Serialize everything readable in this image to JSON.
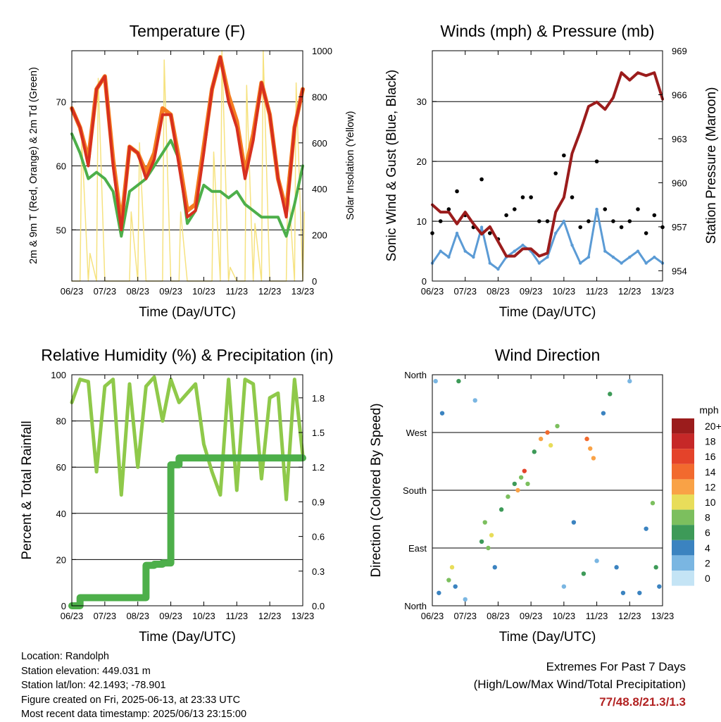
{
  "x_ticks": [
    "06/23",
    "07/23",
    "08/23",
    "09/23",
    "10/23",
    "11/23",
    "12/23",
    "13/23"
  ],
  "time_axis_label": "Time (Day/UTC)",
  "colors": {
    "temp2m": "#d7301f",
    "temp9m": "#f47c20",
    "dewpoint": "#4daf4a",
    "solar": "#f6e27f",
    "wind": "#5b9bd5",
    "gust": "#000000",
    "pressure": "#9b1c1c",
    "rh": "#8fc94a",
    "rain": "#4daf4a"
  },
  "footer": {
    "location": "Location: Randolph",
    "elevation": "Station elevation: 449.031 m",
    "latlon": "Station lat/lon: 42.1493; -78.901",
    "created": "Figure created on Fri, 2025-06-13, at 23:33 UTC",
    "recent": "Most recent data timestamp: 2025/06/13 23:15:00"
  },
  "extremes": {
    "title": "Extremes For Past 7 Days",
    "subtitle": "(High/Low/Max Wind/Total Precipitation)",
    "values": "77/48.8/21.3/1.3"
  },
  "chart_data": [
    {
      "type": "line",
      "title": "Temperature (F)",
      "xlabel": "Time (Day/UTC)",
      "ylabel": "2m & 9m T (Red, Orange) & 2m Td (Green)",
      "ylabel_right": "Solar Insolation (Yellow)",
      "ylim": [
        42,
        78
      ],
      "y2lim": [
        0,
        1000
      ],
      "yticks": [
        50,
        60,
        70
      ],
      "y2ticks": [
        0,
        200,
        400,
        600,
        800,
        1000
      ],
      "grid": true,
      "x": [
        6.0,
        6.25,
        6.5,
        6.75,
        7.0,
        7.25,
        7.5,
        7.75,
        8.0,
        8.25,
        8.5,
        8.75,
        9.0,
        9.25,
        9.5,
        9.75,
        10.0,
        10.25,
        10.5,
        10.75,
        11.0,
        11.25,
        11.5,
        11.75,
        12.0,
        12.25,
        12.5,
        12.75,
        13.0
      ],
      "series": [
        {
          "name": "2m T",
          "axis": "left",
          "values": [
            69,
            66,
            60,
            72,
            74,
            60,
            50,
            63,
            62,
            58,
            61,
            68,
            68,
            60,
            52,
            53,
            62,
            72,
            77,
            70,
            66,
            58,
            64,
            73,
            68,
            58,
            52,
            66,
            72
          ]
        },
        {
          "name": "9m T",
          "axis": "left",
          "values": [
            69,
            66,
            61,
            72,
            74,
            61,
            51,
            63,
            62,
            59,
            62,
            69,
            68,
            61,
            53,
            54,
            63,
            72,
            77,
            71,
            67,
            59,
            65,
            73,
            68,
            58,
            53,
            66,
            72
          ]
        },
        {
          "name": "2m Td",
          "axis": "left",
          "values": [
            65,
            62,
            58,
            59,
            58,
            56,
            49,
            56,
            57,
            58,
            60,
            62,
            64,
            61,
            51,
            53,
            57,
            56,
            56,
            55,
            56,
            54,
            53,
            52,
            52,
            52,
            49,
            54,
            60
          ]
        },
        {
          "name": "Solar Insolation",
          "axis": "right",
          "values": [
            0,
            620,
            120,
            880,
            0,
            0,
            0,
            300,
            600,
            0,
            0,
            960,
            0,
            300,
            0,
            0,
            0,
            560,
            1000,
            60,
            0,
            850,
            250,
            1000,
            0,
            0,
            450,
            860,
            300
          ]
        }
      ]
    },
    {
      "type": "line",
      "title": "Winds (mph) & Pressure (mb)",
      "xlabel": "Time (Day/UTC)",
      "ylabel": "Sonic Wind & Gust (Blue, Black)",
      "ylabel_right": "Station Pressure (Maroon)",
      "ylim": [
        0,
        38.5
      ],
      "y2lim": [
        953.3,
        969
      ],
      "yticks": [
        0,
        10,
        20,
        30
      ],
      "y2ticks": [
        954,
        957,
        960,
        963,
        966,
        969
      ],
      "grid": true,
      "x": [
        6.0,
        6.25,
        6.5,
        6.75,
        7.0,
        7.25,
        7.5,
        7.75,
        8.0,
        8.25,
        8.5,
        8.75,
        9.0,
        9.25,
        9.5,
        9.75,
        10.0,
        10.25,
        10.5,
        10.75,
        11.0,
        11.25,
        11.5,
        11.75,
        12.0,
        12.25,
        12.5,
        12.75,
        13.0
      ],
      "series": [
        {
          "name": "Sonic Wind",
          "axis": "left",
          "values": [
            3,
            5,
            4,
            8,
            5,
            4,
            9,
            3,
            2,
            4,
            5,
            6,
            5,
            3,
            4,
            8,
            10,
            6,
            3,
            4,
            12,
            5,
            4,
            3,
            4,
            5,
            3,
            4,
            3
          ]
        },
        {
          "name": "Gust",
          "axis": "left",
          "values": [
            8,
            10,
            12,
            15,
            11,
            9,
            17,
            8,
            7,
            11,
            12,
            14,
            14,
            10,
            10,
            18,
            21,
            14,
            9,
            10,
            20,
            12,
            10,
            9,
            10,
            12,
            8,
            11,
            9
          ]
        },
        {
          "name": "Station Pressure",
          "axis": "right",
          "values": [
            958.5,
            958.0,
            958.0,
            957.2,
            958.0,
            957.2,
            956.5,
            957.0,
            956.0,
            955.0,
            955.0,
            955.5,
            955.5,
            955.0,
            955.2,
            958.0,
            959.0,
            962.0,
            963.5,
            965.2,
            965.5,
            965.0,
            965.8,
            967.5,
            967.0,
            967.5,
            967.3,
            967.5,
            965.7
          ]
        }
      ]
    },
    {
      "type": "line",
      "title": "Relative Humidity (%) & Precipitation (in)",
      "xlabel": "Time (Day/UTC)",
      "ylabel": "Percent & Total Rainfall",
      "ylim": [
        0,
        100
      ],
      "y2lim": [
        0,
        2.0
      ],
      "yticks": [
        0,
        20,
        40,
        60,
        80,
        100
      ],
      "y2ticks": [
        0.0,
        0.3,
        0.6,
        0.9,
        1.2,
        1.5,
        1.8
      ],
      "grid": true,
      "x": [
        6.0,
        6.25,
        6.5,
        6.75,
        7.0,
        7.25,
        7.5,
        7.75,
        8.0,
        8.25,
        8.5,
        8.75,
        9.0,
        9.25,
        9.5,
        9.75,
        10.0,
        10.25,
        10.5,
        10.75,
        11.0,
        11.25,
        11.5,
        11.75,
        12.0,
        12.25,
        12.5,
        12.75,
        13.0
      ],
      "series": [
        {
          "name": "Relative Humidity",
          "axis": "left",
          "values": [
            88,
            98,
            97,
            58,
            95,
            98,
            48,
            96,
            60,
            95,
            99,
            80,
            98,
            88,
            92,
            96,
            70,
            58,
            48,
            98,
            50,
            98,
            96,
            55,
            90,
            92,
            46,
            98,
            65
          ]
        },
        {
          "name": "Total Rainfall",
          "axis": "right",
          "values": [
            0.0,
            0.07,
            0.07,
            0.07,
            0.07,
            0.07,
            0.07,
            0.07,
            0.07,
            0.35,
            0.36,
            0.37,
            1.22,
            1.28,
            1.28,
            1.28,
            1.28,
            1.28,
            1.28,
            1.28,
            1.28,
            1.28,
            1.28,
            1.28,
            1.28,
            1.28,
            1.28,
            1.28,
            1.28
          ]
        }
      ]
    },
    {
      "type": "scatter",
      "title": "Wind Direction",
      "xlabel": "Time (Day/UTC)",
      "ylabel": "Direction (Colored By Speed)",
      "ylim": [
        0,
        360
      ],
      "ytick_labels": [
        "North",
        "East",
        "South",
        "West",
        "North"
      ],
      "grid": true,
      "colorbar_title": "mph",
      "colorbar_labels": [
        "20+",
        "18",
        "16",
        "14",
        "12",
        "10",
        "8",
        "6",
        "4",
        "2",
        "0"
      ],
      "colorbar_colors": [
        "#9b1c1c",
        "#c62828",
        "#e4432a",
        "#f26a2e",
        "#f9a246",
        "#e8dd5a",
        "#7cbf5e",
        "#3d9a58",
        "#3b83c0",
        "#7ab6e2",
        "#c4e4f5"
      ],
      "points": [
        {
          "x": 6.1,
          "dir": 350,
          "mph": 3
        },
        {
          "x": 6.2,
          "dir": 20,
          "mph": 4
        },
        {
          "x": 6.3,
          "dir": 300,
          "mph": 4
        },
        {
          "x": 6.5,
          "dir": 40,
          "mph": 8
        },
        {
          "x": 6.6,
          "dir": 60,
          "mph": 11
        },
        {
          "x": 6.7,
          "dir": 30,
          "mph": 5
        },
        {
          "x": 6.8,
          "dir": 350,
          "mph": 6
        },
        {
          "x": 7.0,
          "dir": 10,
          "mph": 2
        },
        {
          "x": 7.3,
          "dir": 320,
          "mph": 3
        },
        {
          "x": 7.5,
          "dir": 100,
          "mph": 7
        },
        {
          "x": 7.6,
          "dir": 130,
          "mph": 9
        },
        {
          "x": 7.7,
          "dir": 90,
          "mph": 8
        },
        {
          "x": 7.8,
          "dir": 110,
          "mph": 11
        },
        {
          "x": 7.9,
          "dir": 60,
          "mph": 4
        },
        {
          "x": 8.1,
          "dir": 150,
          "mph": 6
        },
        {
          "x": 8.3,
          "dir": 170,
          "mph": 9
        },
        {
          "x": 8.5,
          "dir": 190,
          "mph": 7
        },
        {
          "x": 8.6,
          "dir": 180,
          "mph": 12
        },
        {
          "x": 8.7,
          "dir": 200,
          "mph": 8
        },
        {
          "x": 8.8,
          "dir": 210,
          "mph": 16
        },
        {
          "x": 8.9,
          "dir": 190,
          "mph": 9
        },
        {
          "x": 9.1,
          "dir": 240,
          "mph": 6
        },
        {
          "x": 9.3,
          "dir": 260,
          "mph": 12
        },
        {
          "x": 9.5,
          "dir": 270,
          "mph": 14
        },
        {
          "x": 9.6,
          "dir": 250,
          "mph": 11
        },
        {
          "x": 9.8,
          "dir": 280,
          "mph": 9
        },
        {
          "x": 10.0,
          "dir": 30,
          "mph": 3
        },
        {
          "x": 10.3,
          "dir": 130,
          "mph": 4
        },
        {
          "x": 10.6,
          "dir": 50,
          "mph": 6
        },
        {
          "x": 10.7,
          "dir": 260,
          "mph": 14
        },
        {
          "x": 10.8,
          "dir": 245,
          "mph": 13
        },
        {
          "x": 10.9,
          "dir": 230,
          "mph": 12
        },
        {
          "x": 11.0,
          "dir": 70,
          "mph": 3
        },
        {
          "x": 11.2,
          "dir": 300,
          "mph": 5
        },
        {
          "x": 11.4,
          "dir": 330,
          "mph": 7
        },
        {
          "x": 11.6,
          "dir": 60,
          "mph": 4
        },
        {
          "x": 11.8,
          "dir": 20,
          "mph": 5
        },
        {
          "x": 12.0,
          "dir": 350,
          "mph": 3
        },
        {
          "x": 12.3,
          "dir": 20,
          "mph": 4
        },
        {
          "x": 12.5,
          "dir": 120,
          "mph": 5
        },
        {
          "x": 12.7,
          "dir": 160,
          "mph": 9
        },
        {
          "x": 12.8,
          "dir": 60,
          "mph": 7
        },
        {
          "x": 12.9,
          "dir": 30,
          "mph": 4
        }
      ]
    }
  ]
}
